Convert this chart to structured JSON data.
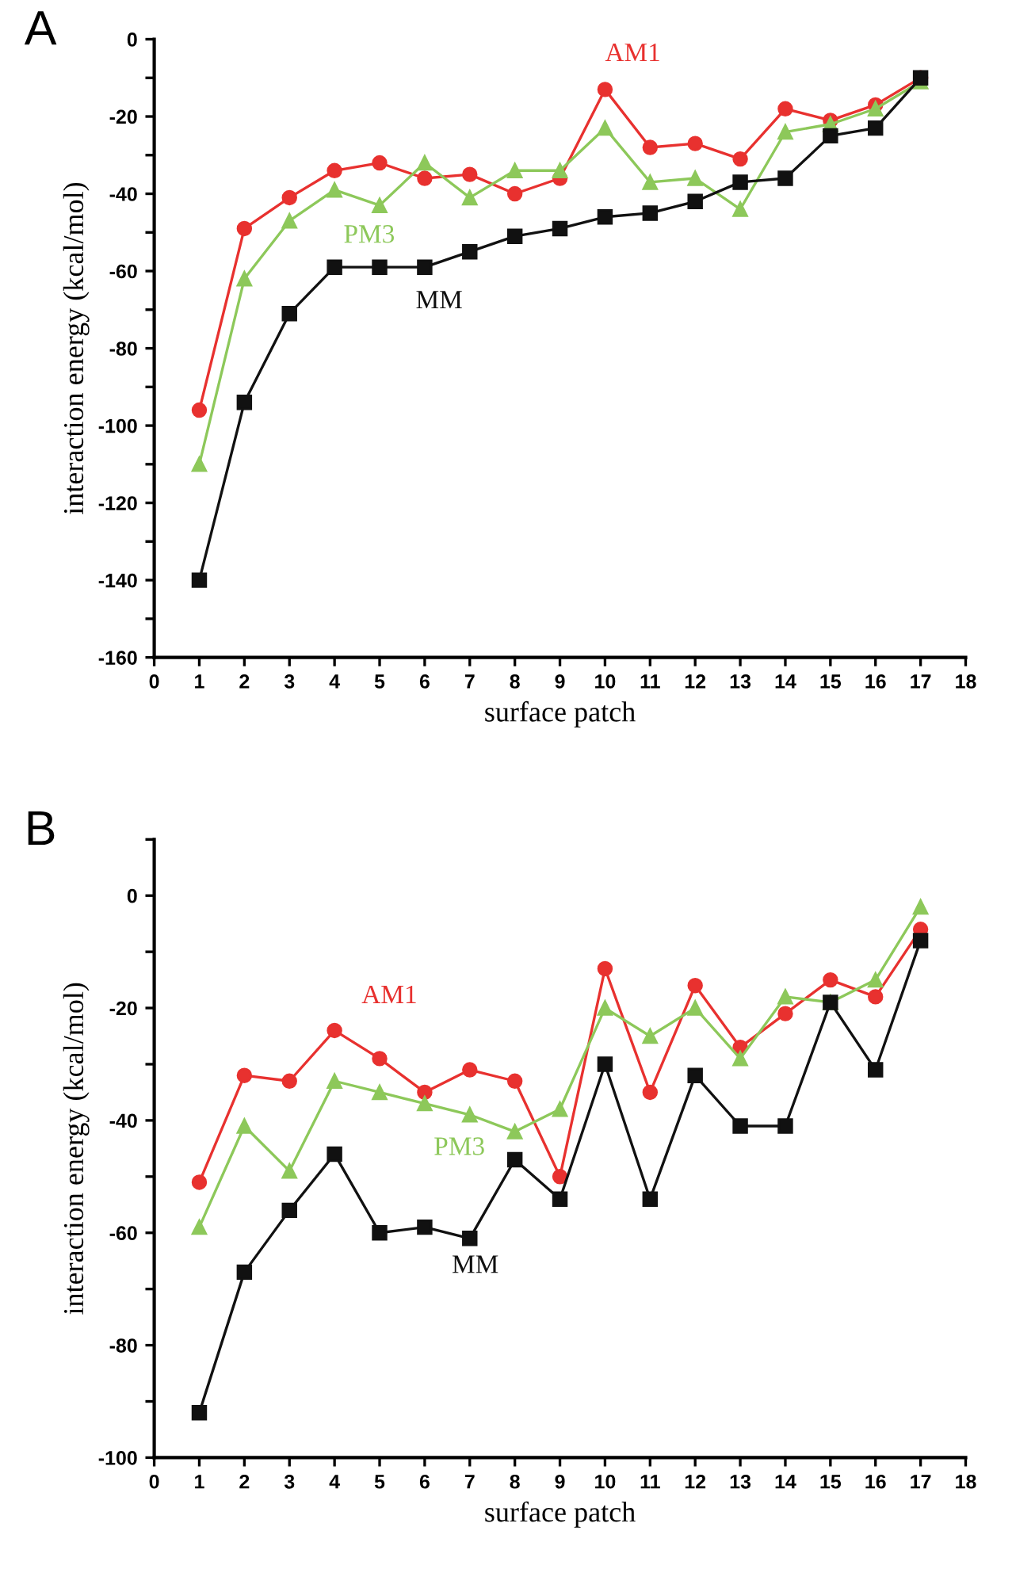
{
  "chart_data": [
    {
      "type": "line",
      "title": "A",
      "xlabel": "surface patch",
      "ylabel": "interaction energy (kcal/mol)",
      "legend": false,
      "grid": false,
      "x": [
        1,
        2,
        3,
        4,
        5,
        6,
        7,
        8,
        9,
        10,
        11,
        12,
        13,
        14,
        15,
        16,
        17
      ],
      "xlim": [
        0,
        18
      ],
      "xticks": [
        0,
        1,
        2,
        3,
        4,
        5,
        6,
        7,
        8,
        9,
        10,
        11,
        12,
        13,
        14,
        15,
        16,
        17,
        18
      ],
      "ylim": [
        -160,
        0
      ],
      "yticks": [
        -160,
        {
          "value": -150,
          "label": null
        },
        -140,
        {
          "value": -130,
          "label": null
        },
        -120,
        {
          "value": -110,
          "label": null
        },
        -100,
        {
          "value": -90,
          "label": null
        },
        -80,
        {
          "value": -70,
          "label": null
        },
        -60,
        {
          "value": -50,
          "label": null
        },
        -40,
        {
          "value": -30,
          "label": null
        },
        -20,
        {
          "value": -10,
          "label": null
        },
        0
      ],
      "series": [
        {
          "name": "AM1",
          "color": "#e8312f",
          "marker": "circle",
          "values": [
            -96,
            -49,
            -41,
            -34,
            -32,
            -36,
            -35,
            -40,
            -36,
            -13,
            -28,
            -27,
            -31,
            -18,
            -21,
            -17,
            -10
          ]
        },
        {
          "name": "PM3",
          "color": "#8dc85a",
          "marker": "triangle",
          "values": [
            -110,
            -62,
            -47,
            -39,
            -43,
            -32,
            -41,
            -34,
            -34,
            -23,
            -37,
            -36,
            -44,
            -24,
            -22,
            -18,
            -11
          ]
        },
        {
          "name": "MM",
          "color": "#111111",
          "marker": "square",
          "values": [
            -140,
            -94,
            -71,
            -59,
            -59,
            -59,
            -55,
            -51,
            -49,
            -46,
            -45,
            -42,
            -37,
            -36,
            -25,
            -23,
            -10
          ]
        }
      ]
    },
    {
      "type": "line",
      "title": "B",
      "xlabel": "surface patch",
      "ylabel": "interaction energy (kcal/mol)",
      "legend": false,
      "grid": false,
      "x": [
        1,
        2,
        3,
        4,
        5,
        6,
        7,
        8,
        9,
        10,
        11,
        12,
        13,
        14,
        15,
        16,
        17
      ],
      "xlim": [
        0,
        18
      ],
      "xticks": [
        0,
        1,
        2,
        3,
        4,
        5,
        6,
        7,
        8,
        9,
        10,
        11,
        12,
        13,
        14,
        15,
        16,
        17,
        18
      ],
      "ylim": [
        -100,
        10
      ],
      "yticks": [
        -100,
        {
          "value": -90,
          "label": null
        },
        -80,
        {
          "value": -70,
          "label": null
        },
        -60,
        {
          "value": -50,
          "label": null
        },
        -40,
        {
          "value": -30,
          "label": null
        },
        -20,
        {
          "value": -10,
          "label": null
        },
        0,
        {
          "value": 10,
          "label": null
        }
      ],
      "series": [
        {
          "name": "AM1",
          "color": "#e8312f",
          "marker": "circle",
          "values": [
            -51,
            -32,
            -33,
            -24,
            -29,
            -35,
            -31,
            -33,
            -50,
            -13,
            -35,
            -16,
            -27,
            -21,
            -15,
            -18,
            -6
          ]
        },
        {
          "name": "PM3",
          "color": "#8dc85a",
          "marker": "triangle",
          "values": [
            -59,
            -41,
            -49,
            -33,
            -35,
            -37,
            -39,
            -42,
            -38,
            -20,
            -25,
            -20,
            -29,
            -18,
            -19,
            -15,
            -2
          ]
        },
        {
          "name": "MM",
          "color": "#111111",
          "marker": "square",
          "values": [
            -92,
            -67,
            -56,
            -46,
            -60,
            -59,
            -61,
            -47,
            -54,
            -30,
            -54,
            -32,
            -41,
            -41,
            -19,
            -31,
            -8
          ]
        }
      ]
    }
  ]
}
